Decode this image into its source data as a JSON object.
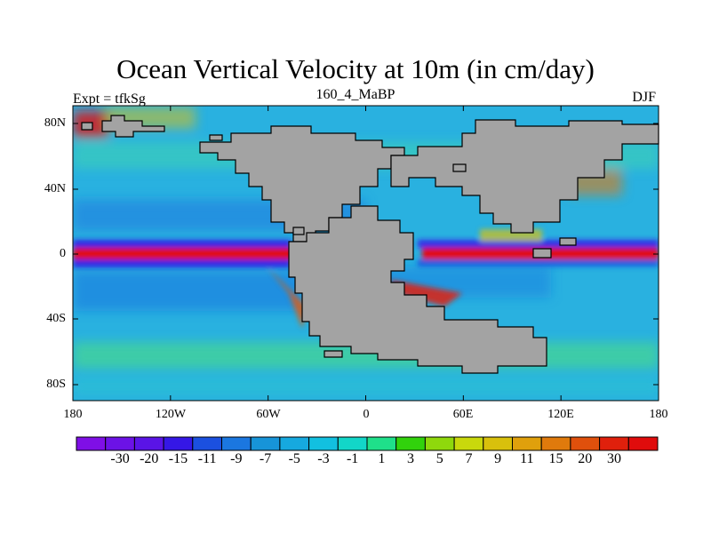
{
  "header": {
    "title": "Ocean Vertical Velocity at 10m (in cm/day)",
    "left": "Expt = tfkSg",
    "center": "160_4_MaBP",
    "right": "DJF"
  },
  "map": {
    "ocean_base_color": "#29b1e0",
    "land_color": "#a3a3a3",
    "lat_ticks": [
      "80N",
      "40N",
      "0",
      "40S",
      "80S"
    ],
    "lon_ticks": [
      "180",
      "120W",
      "60W",
      "0",
      "60E",
      "120E",
      "180"
    ]
  },
  "colorbar": {
    "colors": [
      "#7f0fe6",
      "#6c12e6",
      "#5a14e6",
      "#3517e6",
      "#1b50e0",
      "#1b77e0",
      "#1794d8",
      "#16a9df",
      "#12c0e0",
      "#12d6c8",
      "#1fe08a",
      "#31d20c",
      "#8fd80c",
      "#c9d80c",
      "#d8c00c",
      "#e0a00c",
      "#e07a0c",
      "#e0500c",
      "#e0200c",
      "#e00c0c"
    ],
    "labels": [
      "-30",
      "-20",
      "-15",
      "-11",
      "-9",
      "-7",
      "-5",
      "-3",
      "-1",
      "1",
      "3",
      "5",
      "7",
      "9",
      "11",
      "15",
      "20",
      "30"
    ]
  }
}
